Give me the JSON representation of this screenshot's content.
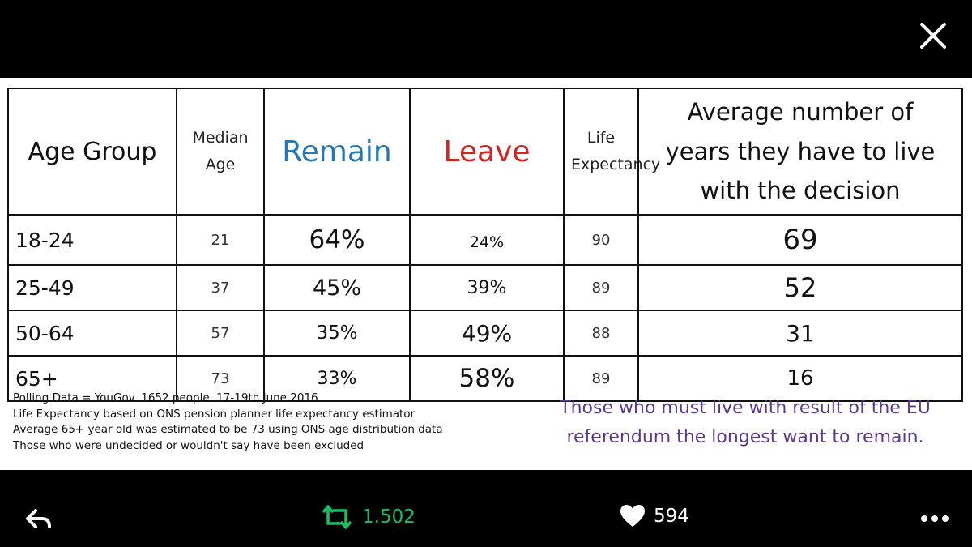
{
  "table": {
    "headers": {
      "age_group": "Age Group",
      "median_age": [
        "Median",
        "Age"
      ],
      "remain": "Remain",
      "leave": "Leave",
      "life_expectancy": [
        "Life",
        "Expectancy"
      ],
      "years": [
        "Average number of",
        "years they have to live",
        "with the decision"
      ]
    },
    "rows": [
      {
        "age": "18-24",
        "median": "21",
        "remain": "64%",
        "leave": "24%",
        "life": "90",
        "years": "69"
      },
      {
        "age": "25-49",
        "median": "37",
        "remain": "45%",
        "leave": "39%",
        "life": "89",
        "years": "52"
      },
      {
        "age": "50-64",
        "median": "57",
        "remain": "35%",
        "leave": "49%",
        "life": "88",
        "years": "31"
      },
      {
        "age": "65+",
        "median": "73",
        "remain": "33%",
        "leave": "58%",
        "life": "89",
        "years": "16"
      }
    ]
  },
  "notes": [
    "Polling Data = YouGov. 1652 people. 17-19th June 2016",
    "Life Expectancy based on ONS pension planner life expectancy estimator",
    "Average 65+ year old was estimated to be 73 using ONS age distribution data",
    "Those who were undecided or wouldn't say have been excluded"
  ],
  "caption": [
    "Those who must live with result of the EU",
    "referendum the longest want to remain."
  ],
  "actions": {
    "retweet_count": "1.502",
    "like_count": "594",
    "icons": {
      "close": "close-icon",
      "reply": "reply-icon",
      "retweet": "retweet-icon",
      "like": "heart-icon",
      "more": "more-icon"
    }
  },
  "colors": {
    "remain": "#2578b5",
    "leave": "#d42323",
    "retweet": "#19bf63",
    "caption": "#5b3a8c"
  }
}
